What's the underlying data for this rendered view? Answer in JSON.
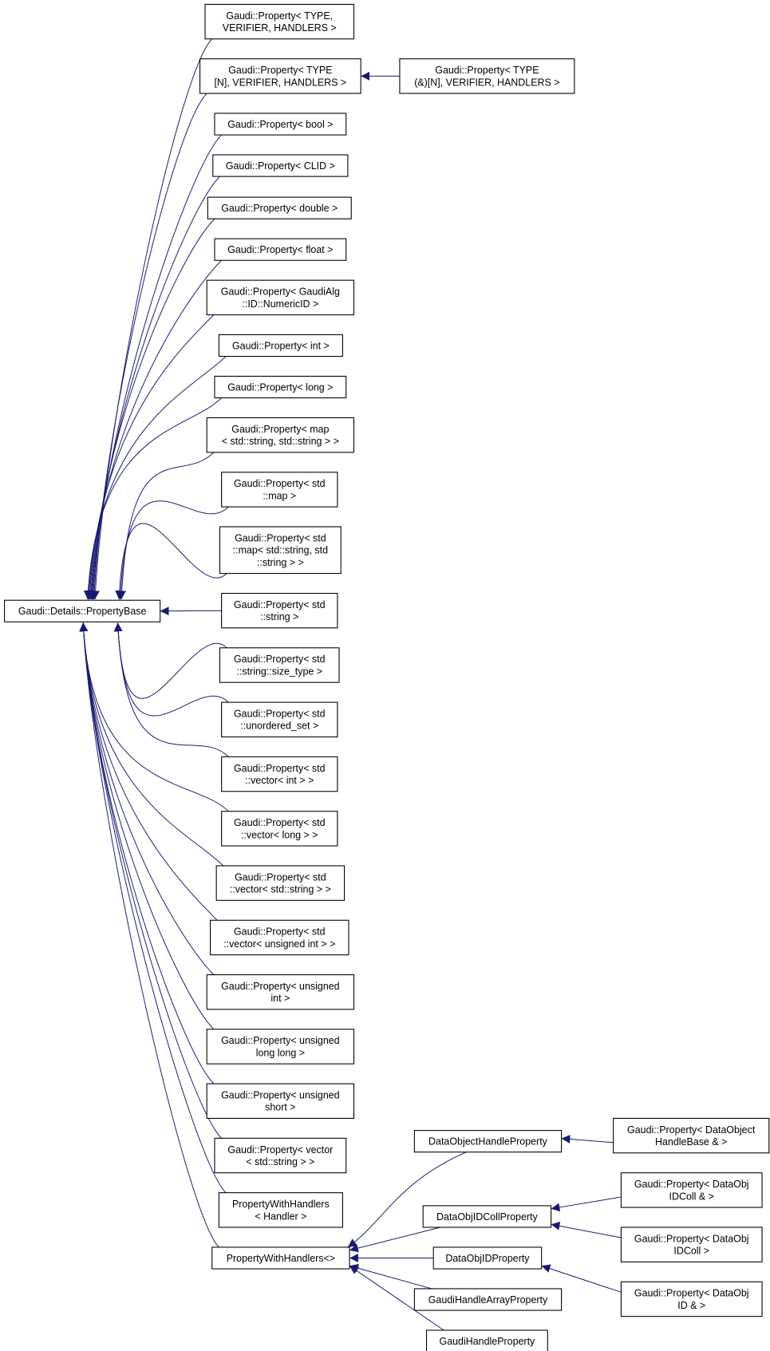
{
  "colors": {
    "edge": "#191970",
    "node_border": "#000000",
    "background": "#ffffff"
  },
  "nodes": [
    {
      "id": "base",
      "lines": [
        "Gaudi::Details::PropertyBase"
      ]
    },
    {
      "id": "n1",
      "lines": [
        "Gaudi::Property< TYPE,",
        "VERIFIER, HANDLERS >"
      ]
    },
    {
      "id": "n2",
      "lines": [
        "Gaudi::Property< TYPE",
        "[N], VERIFIER, HANDLERS >"
      ]
    },
    {
      "id": "n3",
      "lines": [
        "Gaudi::Property< TYPE",
        "(&)[N], VERIFIER, HANDLERS >"
      ]
    },
    {
      "id": "n4",
      "lines": [
        "Gaudi::Property< bool >"
      ]
    },
    {
      "id": "n5",
      "lines": [
        "Gaudi::Property< CLID >"
      ]
    },
    {
      "id": "n6",
      "lines": [
        "Gaudi::Property< double >"
      ]
    },
    {
      "id": "n7",
      "lines": [
        "Gaudi::Property< float >"
      ]
    },
    {
      "id": "n8",
      "lines": [
        "Gaudi::Property< GaudiAlg",
        "::ID::NumericID >"
      ]
    },
    {
      "id": "n9",
      "lines": [
        "Gaudi::Property< int >"
      ]
    },
    {
      "id": "n10",
      "lines": [
        "Gaudi::Property< long >"
      ]
    },
    {
      "id": "n11",
      "lines": [
        "Gaudi::Property< map",
        "< std::string, std::string > >"
      ]
    },
    {
      "id": "n12",
      "lines": [
        "Gaudi::Property< std",
        "::map >"
      ]
    },
    {
      "id": "n13",
      "lines": [
        "Gaudi::Property< std",
        "::map< std::string, std",
        "::string > >"
      ]
    },
    {
      "id": "n14",
      "lines": [
        "Gaudi::Property< std",
        "::string >"
      ]
    },
    {
      "id": "n15",
      "lines": [
        "Gaudi::Property< std",
        "::string::size_type >"
      ]
    },
    {
      "id": "n16",
      "lines": [
        "Gaudi::Property< std",
        "::unordered_set >"
      ]
    },
    {
      "id": "n17",
      "lines": [
        "Gaudi::Property< std",
        "::vector< int > >"
      ]
    },
    {
      "id": "n18",
      "lines": [
        "Gaudi::Property< std",
        "::vector< long > >"
      ]
    },
    {
      "id": "n19",
      "lines": [
        "Gaudi::Property< std",
        "::vector< std::string > >"
      ]
    },
    {
      "id": "n20",
      "lines": [
        "Gaudi::Property< std",
        "::vector< unsigned int > >"
      ]
    },
    {
      "id": "n21",
      "lines": [
        "Gaudi::Property< unsigned",
        "int >"
      ]
    },
    {
      "id": "n22",
      "lines": [
        "Gaudi::Property< unsigned",
        "long long >"
      ]
    },
    {
      "id": "n23",
      "lines": [
        "Gaudi::Property< unsigned",
        "short >"
      ]
    },
    {
      "id": "n24",
      "lines": [
        "Gaudi::Property< vector",
        "< std::string > >"
      ]
    },
    {
      "id": "n25",
      "lines": [
        "PropertyWithHandlers",
        "< Handler >"
      ]
    },
    {
      "id": "n26",
      "lines": [
        "PropertyWithHandlers<>"
      ]
    },
    {
      "id": "d1",
      "lines": [
        "DataObjectHandleProperty"
      ]
    },
    {
      "id": "d2",
      "lines": [
        "Gaudi::Property< DataObject",
        "HandleBase & >"
      ]
    },
    {
      "id": "d3",
      "lines": [
        "DataObjIDCollProperty"
      ]
    },
    {
      "id": "d4",
      "lines": [
        "Gaudi::Property< DataObj",
        "IDColl & >"
      ]
    },
    {
      "id": "d5",
      "lines": [
        "Gaudi::Property< DataObj",
        "IDColl >"
      ]
    },
    {
      "id": "d6",
      "lines": [
        "DataObjIDProperty"
      ]
    },
    {
      "id": "d7",
      "lines": [
        "Gaudi::Property< DataObj",
        "ID & >"
      ]
    },
    {
      "id": "d8",
      "lines": [
        "GaudiHandleArrayProperty"
      ]
    },
    {
      "id": "d9",
      "lines": [
        "GaudiHandleProperty"
      ]
    }
  ],
  "edges": [
    {
      "from": "n1",
      "to": "base"
    },
    {
      "from": "n2",
      "to": "base"
    },
    {
      "from": "n3",
      "to": "n2"
    },
    {
      "from": "n4",
      "to": "base"
    },
    {
      "from": "n5",
      "to": "base"
    },
    {
      "from": "n6",
      "to": "base"
    },
    {
      "from": "n7",
      "to": "base"
    },
    {
      "from": "n8",
      "to": "base"
    },
    {
      "from": "n9",
      "to": "base"
    },
    {
      "from": "n10",
      "to": "base"
    },
    {
      "from": "n11",
      "to": "base"
    },
    {
      "from": "n12",
      "to": "base"
    },
    {
      "from": "n13",
      "to": "base"
    },
    {
      "from": "n14",
      "to": "base"
    },
    {
      "from": "n15",
      "to": "base"
    },
    {
      "from": "n16",
      "to": "base"
    },
    {
      "from": "n17",
      "to": "base"
    },
    {
      "from": "n18",
      "to": "base"
    },
    {
      "from": "n19",
      "to": "base"
    },
    {
      "from": "n20",
      "to": "base"
    },
    {
      "from": "n21",
      "to": "base"
    },
    {
      "from": "n22",
      "to": "base"
    },
    {
      "from": "n23",
      "to": "base"
    },
    {
      "from": "n24",
      "to": "base"
    },
    {
      "from": "n25",
      "to": "base"
    },
    {
      "from": "n26",
      "to": "base"
    },
    {
      "from": "d1",
      "to": "n26"
    },
    {
      "from": "d2",
      "to": "d1"
    },
    {
      "from": "d3",
      "to": "n26"
    },
    {
      "from": "d4",
      "to": "d3"
    },
    {
      "from": "d5",
      "to": "d3"
    },
    {
      "from": "d6",
      "to": "n26"
    },
    {
      "from": "d7",
      "to": "d6"
    },
    {
      "from": "d8",
      "to": "n26"
    },
    {
      "from": "d9",
      "to": "n26"
    }
  ]
}
